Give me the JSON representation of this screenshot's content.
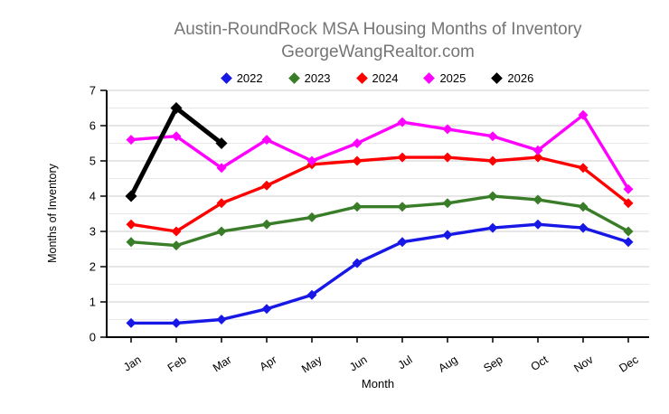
{
  "title": {
    "line1": "Austin-RoundRock MSA Housing Months of Inventory",
    "line2": "GeorgeWangRealtor.com"
  },
  "colors": {
    "title_text": "#757575",
    "axis": "#000000",
    "tick_label": "#000000",
    "major_gridline": "#cccccc",
    "minor_gridline": "#e8e8e8",
    "background": "#ffffff"
  },
  "chart_data": {
    "type": "line",
    "title": "Austin-RoundRock MSA Housing Months of Inventory",
    "subtitle": "GeorgeWangRealtor.com",
    "xlabel": "Month",
    "ylabel": "Months of Inventory",
    "x": [
      "Jan",
      "Feb",
      "Mar",
      "Apr",
      "May",
      "Jun",
      "Jul",
      "Aug",
      "Sep",
      "Oct",
      "Nov",
      "Dec"
    ],
    "ylim": [
      0,
      7
    ],
    "ytick_step": 1,
    "minor_gridline_step": 0.5,
    "grid": true,
    "legend_position": "top",
    "marker": "diamond",
    "series": [
      {
        "name": "2022",
        "color": "#1717e6",
        "line_width": 3.4,
        "marker_size": 5.5,
        "values": [
          0.4,
          0.4,
          0.5,
          0.8,
          1.2,
          2.1,
          2.7,
          2.9,
          3.1,
          3.2,
          3.1,
          2.7
        ]
      },
      {
        "name": "2023",
        "color": "#3a7d28",
        "line_width": 3.4,
        "marker_size": 5.5,
        "values": [
          2.7,
          2.6,
          3.0,
          3.2,
          3.4,
          3.7,
          3.7,
          3.8,
          4.0,
          3.9,
          3.7,
          3.0
        ]
      },
      {
        "name": "2024",
        "color": "#ff0000",
        "line_width": 3.4,
        "marker_size": 5.5,
        "values": [
          3.2,
          3.0,
          3.8,
          4.3,
          4.9,
          5.0,
          5.1,
          5.1,
          5.0,
          5.1,
          4.8,
          3.8
        ]
      },
      {
        "name": "2025",
        "color": "#ff00ff",
        "line_width": 3.4,
        "marker_size": 5.5,
        "values": [
          5.6,
          5.7,
          4.8,
          5.6,
          5.0,
          5.5,
          6.1,
          5.9,
          5.7,
          5.3,
          6.3,
          4.2
        ]
      },
      {
        "name": "2026",
        "color": "#000000",
        "line_width": 5,
        "marker_size": 6.5,
        "values": [
          4.0,
          6.5,
          5.5,
          null,
          null,
          null,
          null,
          null,
          null,
          null,
          null,
          null
        ]
      }
    ]
  }
}
